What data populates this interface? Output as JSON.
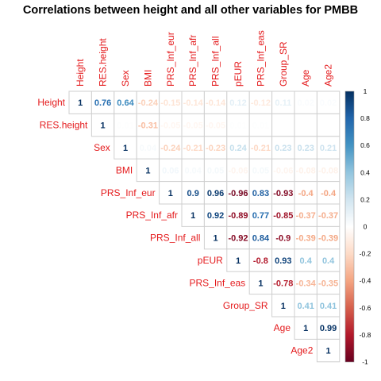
{
  "chart_data": {
    "type": "heatmap",
    "title": "Correlations between height and all other variables for PMBB",
    "variables": [
      "Height",
      "RES.height",
      "Sex",
      "BMI",
      "PRS_Inf_eur",
      "PRS_Inf_afr",
      "PRS_Inf_all",
      "pEUR",
      "PRS_Inf_eas",
      "Group_SR",
      "Age",
      "Age2"
    ],
    "matrix_shape": "upper",
    "values": [
      [
        1,
        0.76,
        0.64,
        -0.24,
        -0.15,
        -0.14,
        -0.14,
        0.12,
        -0.12,
        0.11,
        0.02,
        0.02
      ],
      [
        null,
        1,
        0.01,
        -0.31,
        -0.05,
        -0.05,
        -0.05,
        0.01,
        0.01,
        0.0,
        0.0,
        0.0
      ],
      [
        null,
        null,
        1,
        0.04,
        -0.24,
        -0.21,
        -0.23,
        0.24,
        -0.21,
        0.23,
        0.23,
        0.21
      ],
      [
        null,
        null,
        null,
        1,
        0.06,
        0.04,
        0.05,
        -0.06,
        0.05,
        -0.06,
        -0.08,
        -0.08
      ],
      [
        null,
        null,
        null,
        null,
        1,
        0.9,
        0.96,
        -0.96,
        0.83,
        -0.93,
        -0.4,
        -0.4
      ],
      [
        null,
        null,
        null,
        null,
        null,
        1,
        0.92,
        -0.89,
        0.77,
        -0.85,
        -0.37,
        -0.37
      ],
      [
        null,
        null,
        null,
        null,
        null,
        null,
        1,
        -0.92,
        0.84,
        -0.9,
        -0.39,
        -0.39
      ],
      [
        null,
        null,
        null,
        null,
        null,
        null,
        null,
        1,
        -0.8,
        0.93,
        0.4,
        0.4
      ],
      [
        null,
        null,
        null,
        null,
        null,
        null,
        null,
        null,
        1,
        -0.78,
        -0.34,
        -0.35
      ],
      [
        null,
        null,
        null,
        null,
        null,
        null,
        null,
        null,
        null,
        1,
        0.41,
        0.41
      ],
      [
        null,
        null,
        null,
        null,
        null,
        null,
        null,
        null,
        null,
        null,
        1,
        0.99
      ],
      [
        null,
        null,
        null,
        null,
        null,
        null,
        null,
        null,
        null,
        null,
        null,
        1
      ]
    ],
    "colorbar": {
      "range": [
        -1,
        1
      ],
      "ticks": [
        "1",
        "0.8",
        "0.6",
        "0.4",
        "0.2",
        "0",
        "-0.2",
        "-0.4",
        "-0.6",
        "-0.8",
        "-1"
      ],
      "colors": {
        "neg": "#67001f",
        "mid": "#ffffff",
        "pos": "#053061"
      }
    },
    "label_color": "#e41a1c"
  }
}
